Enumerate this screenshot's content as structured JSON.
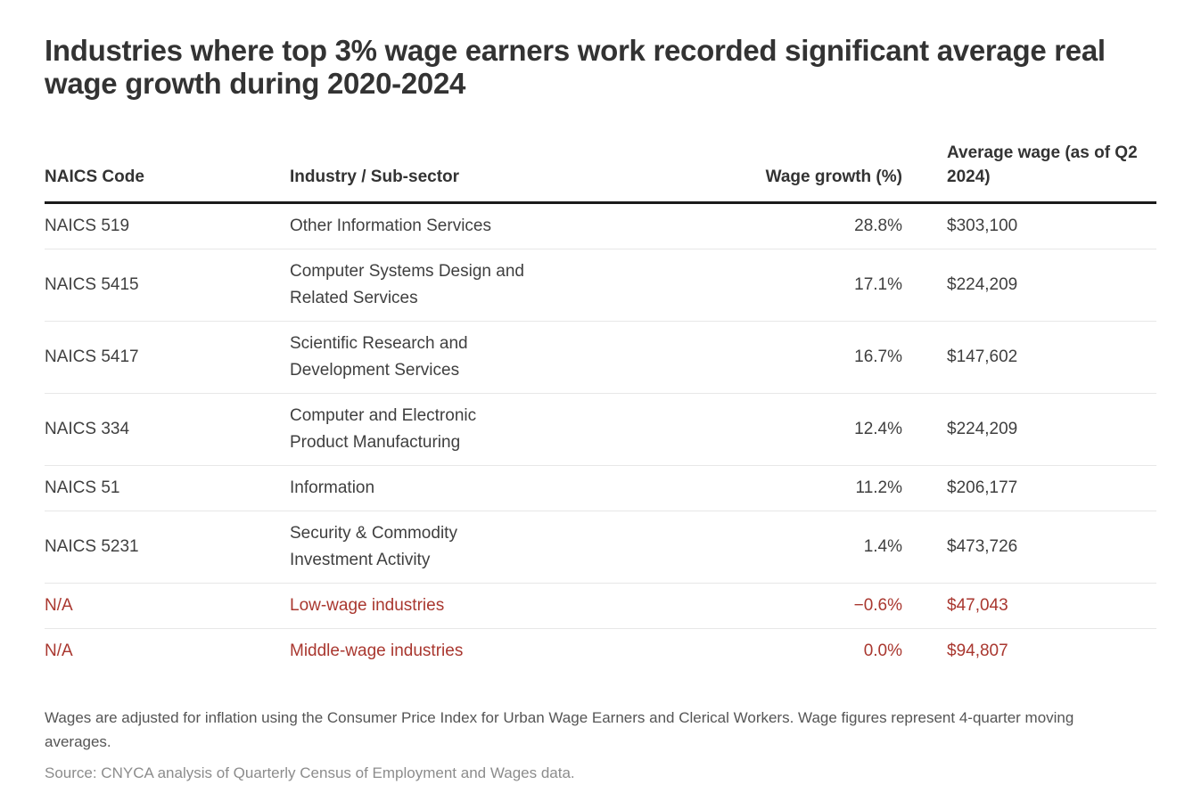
{
  "chart_data": {
    "type": "table",
    "title": "Industries where top 3% wage earners work recorded significant average real wage growth during 2020-2024",
    "columns": [
      "NAICS Code",
      "Industry / Sub-sector",
      "Wage growth (%)",
      "Average wage (as of Q2 2024)"
    ],
    "rows": [
      {
        "naics": "NAICS 519",
        "industry": "Other Information Services",
        "wage_growth_pct": 28.8,
        "wage_growth_label": "28.8%",
        "avg_wage": 303100,
        "avg_wage_label": "$303,100",
        "highlight": false
      },
      {
        "naics": "NAICS 5415",
        "industry": "Computer Systems Design and Related Services",
        "wage_growth_pct": 17.1,
        "wage_growth_label": "17.1%",
        "avg_wage": 224209,
        "avg_wage_label": "$224,209",
        "highlight": false
      },
      {
        "naics": "NAICS 5417",
        "industry": "Scientific Research and Development Services",
        "wage_growth_pct": 16.7,
        "wage_growth_label": "16.7%",
        "avg_wage": 147602,
        "avg_wage_label": "$147,602",
        "highlight": false
      },
      {
        "naics": "NAICS 334",
        "industry": "Computer and Electronic Product Manufacturing",
        "wage_growth_pct": 12.4,
        "wage_growth_label": "12.4%",
        "avg_wage": 224209,
        "avg_wage_label": "$224,209",
        "highlight": false
      },
      {
        "naics": "NAICS 51",
        "industry": "Information",
        "wage_growth_pct": 11.2,
        "wage_growth_label": "11.2%",
        "avg_wage": 206177,
        "avg_wage_label": "$206,177",
        "highlight": false
      },
      {
        "naics": "NAICS 5231",
        "industry": "Security & Commodity Investment Activity",
        "wage_growth_pct": 1.4,
        "wage_growth_label": "1.4%",
        "avg_wage": 473726,
        "avg_wage_label": "$473,726",
        "highlight": false
      },
      {
        "naics": "N/A",
        "industry": "Low-wage industries",
        "wage_growth_pct": -0.6,
        "wage_growth_label": "−0.6%",
        "avg_wage": 47043,
        "avg_wage_label": "$47,043",
        "highlight": true
      },
      {
        "naics": "N/A",
        "industry": "Middle-wage industries",
        "wage_growth_pct": 0.0,
        "wage_growth_label": "0.0%",
        "avg_wage": 94807,
        "avg_wage_label": "$94,807",
        "highlight": true
      }
    ],
    "layout": {
      "grid": false,
      "header_rule": "thick",
      "row_dividers": "thin",
      "highlight_rows": [
        6,
        7
      ]
    }
  },
  "notes": {
    "footnote": "Wages are adjusted for inflation using the Consumer Price Index for Urban Wage Earners and Clerical Workers. Wage figures represent 4-quarter moving averages.",
    "source": "Source: CNYCA analysis of Quarterly Census of Employment and Wages data."
  },
  "colors": {
    "highlight_red": "#a9372f",
    "title_text": "#333333",
    "body_text": "#3f3f3f",
    "footnote_text": "#555555",
    "source_text": "#8c8c8c",
    "header_rule": "#1a1a1a",
    "row_divider": "#e7e7e7",
    "background": "#ffffff"
  }
}
